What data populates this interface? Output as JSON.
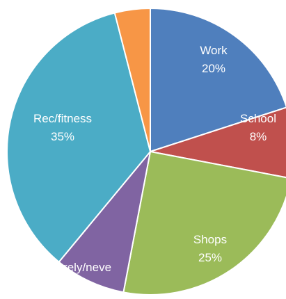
{
  "chart_data": {
    "type": "pie",
    "categories": [
      "Work",
      "School",
      "Shops",
      "rarely/neve",
      "Rec/fitness",
      ""
    ],
    "values": [
      20,
      8,
      25,
      8,
      35,
      4
    ],
    "value_labels": [
      "20%",
      "8%",
      "25%",
      "",
      "35%",
      ""
    ],
    "colors": [
      "#4f7fbd",
      "#c0504d",
      "#9bbb59",
      "#8064a2",
      "#4bacc6",
      "#f79646"
    ],
    "start_angle_deg": 0,
    "direction": "clockwise"
  }
}
